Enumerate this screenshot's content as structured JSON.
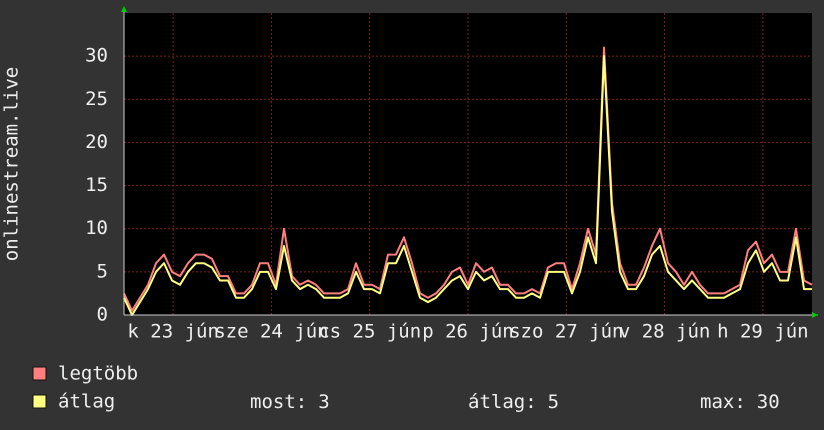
{
  "chart_data": {
    "type": "line",
    "y_label": "onlinestream.live",
    "x_labels": [
      "k 23 jún",
      "sze 24 jún",
      "cs 25 jún",
      "p 26 jún",
      "szo 27 jún",
      "v 28 jún",
      "h 29 jún"
    ],
    "ylim": [
      0,
      35
    ],
    "yticks": [
      0,
      5,
      10,
      15,
      20,
      25,
      30
    ],
    "grid": true,
    "series": [
      {
        "name": "legtöbb",
        "color": "#ff7f7f",
        "values": [
          2.5,
          0.5,
          2,
          3.5,
          6,
          7,
          5,
          4.5,
          6,
          7,
          7,
          6.5,
          4.5,
          4.5,
          2.5,
          2.5,
          3.5,
          6,
          6,
          3.5,
          10,
          4.5,
          3.5,
          4,
          3.5,
          2.5,
          2.5,
          2.5,
          3,
          6,
          3.5,
          3.5,
          3,
          7,
          7,
          9,
          6,
          2.5,
          2,
          2.5,
          3.5,
          5,
          5.5,
          3.5,
          6,
          5,
          5.5,
          3.5,
          3.5,
          2.5,
          2.5,
          3,
          2.5,
          5.5,
          6,
          6,
          3,
          6,
          10,
          7,
          31,
          13,
          6,
          3.5,
          3.5,
          5.5,
          8,
          10,
          6,
          5,
          3.5,
          5,
          3.5,
          2.5,
          2.5,
          2.5,
          3,
          3.5,
          7.5,
          8.5,
          6,
          7,
          5,
          5,
          10,
          4,
          3.5
        ]
      },
      {
        "name": "átlag",
        "color": "#ffff80",
        "values": [
          2,
          0,
          1.5,
          3,
          5,
          6,
          4,
          3.5,
          5,
          6,
          6,
          5.5,
          4,
          4,
          2,
          2,
          3,
          5,
          5,
          3,
          8,
          4,
          3,
          3.5,
          3,
          2,
          2,
          2,
          2.5,
          5,
          3,
          3,
          2.5,
          6,
          6,
          8,
          5,
          2,
          1.5,
          2,
          3,
          4,
          4.5,
          3,
          5,
          4,
          4.5,
          3,
          3,
          2,
          2,
          2.5,
          2,
          5,
          5,
          5,
          2.5,
          5,
          9,
          6,
          30,
          12,
          5,
          3,
          3,
          4.5,
          7,
          8,
          5,
          4,
          3,
          4,
          3,
          2,
          2,
          2,
          2.5,
          3,
          6,
          7.5,
          5,
          6,
          4,
          4,
          9,
          3,
          3
        ]
      }
    ],
    "stats": [
      {
        "label": "most:",
        "value": 3
      },
      {
        "label": "átlag:",
        "value": 5
      },
      {
        "label": "max:",
        "value": 30
      }
    ]
  }
}
